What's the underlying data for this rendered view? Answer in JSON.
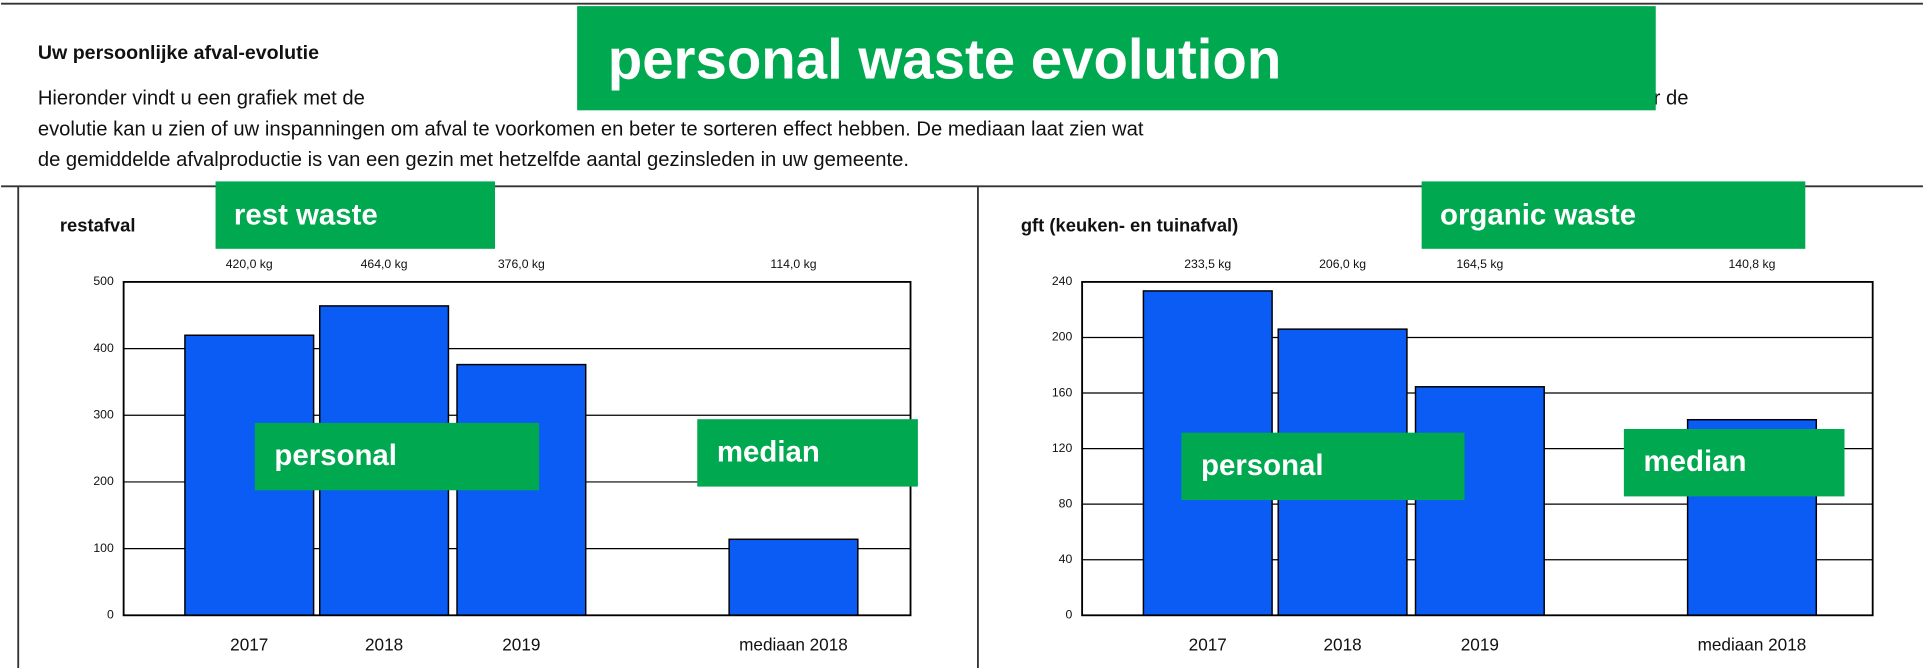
{
  "header": {
    "title": "Uw persoonlijke afval-evolutie",
    "paragraph": [
      "Hieronder vindt u een grafiek met de",
      "Door de",
      "evolutie kan u zien of uw inspanningen om afval te voorkomen en beter te sorteren effect hebben. De mediaan laat zien wat",
      "de gemiddelde afvalproductie is van een gezin met hetzelfde aantal gezinsleden in uw gemeente."
    ]
  },
  "overlay": {
    "title": "personal waste evolution"
  },
  "chart_data": [
    {
      "type": "bar",
      "title": "restafval",
      "overlay_title": "rest waste",
      "categories": [
        "2017",
        "2018",
        "2019",
        "mediaan 2018"
      ],
      "values": [
        420,
        464,
        376,
        114
      ],
      "value_labels": [
        "420,0 kg",
        "464,0 kg",
        "376,0 kg",
        "114,0 kg"
      ],
      "color": "#0a5cf5",
      "ylim": [
        0,
        500
      ],
      "yticks": [
        0,
        100,
        200,
        300,
        400,
        500
      ],
      "grid": true,
      "annotations": [
        "personal",
        "median"
      ]
    },
    {
      "type": "bar",
      "title": "gft (keuken- en tuinafval)",
      "overlay_title": "organic waste",
      "categories": [
        "2017",
        "2018",
        "2019",
        "mediaan 2018"
      ],
      "values": [
        233.5,
        206,
        164.5,
        140.8
      ],
      "value_labels": [
        "233,5 kg",
        "206,0 kg",
        "164,5 kg",
        "140,8 kg"
      ],
      "color": "#0a5cf5",
      "ylim": [
        0,
        240
      ],
      "yticks": [
        0,
        40,
        80,
        120,
        160,
        200,
        240
      ],
      "grid": true,
      "annotations": [
        "personal",
        "median"
      ]
    }
  ]
}
